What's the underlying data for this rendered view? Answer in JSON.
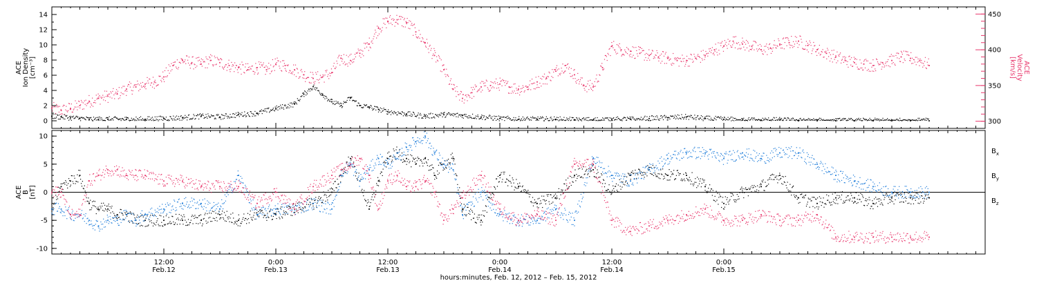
{
  "chart_data": [
    {
      "type": "scatter",
      "panel": "density-velocity",
      "ylabel_left": [
        "ACE",
        "Ion Density",
        "[cm⁻³]"
      ],
      "ylabel_right": [
        "ACE",
        "Velocity",
        "[km/s]"
      ],
      "ylim_left": [
        -1,
        15
      ],
      "ylim_right": [
        290,
        460
      ],
      "yticks_left": [
        0,
        2,
        4,
        6,
        8,
        10,
        12,
        14
      ],
      "yticks_right": [
        300,
        350,
        400,
        450
      ],
      "colors": {
        "density": "#000000",
        "velocity": "#e8346a"
      },
      "series": [
        {
          "key": "density",
          "axis": "left",
          "color": "#000000",
          "x": [
            0,
            1,
            2,
            3,
            4,
            5,
            6,
            8,
            10,
            12,
            14,
            16,
            18,
            20,
            22,
            24,
            26,
            27,
            28,
            29,
            30,
            31,
            32,
            33,
            34,
            35,
            36,
            38,
            40,
            42,
            44,
            46,
            48,
            50,
            52,
            54,
            56,
            58,
            60,
            62,
            64,
            66,
            68,
            70,
            72,
            74,
            76,
            78,
            80,
            82,
            84,
            86,
            88,
            90,
            92,
            94
          ],
          "y": [
            0.6,
            0.5,
            0.4,
            0.3,
            0.2,
            0.2,
            0.2,
            0.2,
            0.2,
            0.3,
            0.4,
            0.6,
            0.5,
            0.8,
            1.0,
            1.6,
            2.2,
            3.5,
            4.5,
            3.5,
            2.5,
            2.0,
            3.0,
            2.0,
            1.8,
            1.5,
            1.2,
            0.9,
            0.6,
            0.8,
            0.7,
            0.5,
            0.3,
            0.2,
            0.2,
            0.2,
            0.1,
            0.1,
            0.2,
            0.2,
            0.3,
            0.4,
            0.5,
            0.3,
            0.2,
            0.1,
            0.1,
            0.1,
            0.0,
            0.0,
            0.0,
            0.0,
            0.0,
            0.0,
            0.0,
            0.0
          ]
        },
        {
          "key": "velocity",
          "axis": "right",
          "color": "#e8346a",
          "x": [
            0,
            1,
            2,
            3,
            4,
            5,
            6,
            7,
            8,
            9,
            10,
            11,
            12,
            13,
            14,
            15,
            16,
            17,
            18,
            19,
            20,
            21,
            22,
            23,
            24,
            25,
            26,
            27,
            28,
            29,
            30,
            31,
            32,
            33,
            34,
            35,
            36,
            37,
            38,
            39,
            40,
            41,
            42,
            43,
            44,
            45,
            46,
            47,
            48,
            49,
            50,
            51,
            52,
            53,
            54,
            55,
            56,
            57,
            58,
            59,
            60,
            61,
            62,
            63,
            64,
            65,
            66,
            67,
            68,
            69,
            70,
            71,
            72,
            73,
            74,
            75,
            76,
            77,
            78,
            79,
            80,
            81,
            82,
            83,
            84,
            85,
            86,
            87,
            88,
            89,
            90,
            91,
            92,
            93,
            94
          ],
          "y": [
            318,
            315,
            318,
            322,
            328,
            332,
            335,
            338,
            345,
            348,
            352,
            355,
            362,
            378,
            385,
            382,
            380,
            385,
            382,
            378,
            375,
            372,
            375,
            372,
            380,
            378,
            372,
            365,
            360,
            362,
            368,
            388,
            385,
            395,
            408,
            430,
            440,
            442,
            438,
            425,
            410,
            392,
            372,
            345,
            332,
            340,
            348,
            350,
            352,
            348,
            345,
            348,
            355,
            360,
            370,
            378,
            365,
            350,
            348,
            375,
            405,
            400,
            398,
            395,
            392,
            390,
            388,
            385,
            385,
            388,
            392,
            400,
            405,
            412,
            408,
            405,
            400,
            402,
            408,
            410,
            412,
            406,
            400,
            395,
            390,
            385,
            382,
            380,
            378,
            382,
            385,
            390,
            388,
            385,
            378
          ]
        }
      ]
    },
    {
      "type": "scatter",
      "panel": "magnetic-field",
      "ylabel": [
        "ACE",
        "B",
        "[nT]"
      ],
      "ylim": [
        -11,
        11
      ],
      "yticks": [
        -10,
        -5,
        0,
        5,
        10
      ],
      "xlabel": "hours:minutes, Feb. 12, 2012 – Feb. 15, 2012",
      "x_hours_total": 100,
      "x_ticks": [
        {
          "hour": 12,
          "time": "12:00",
          "date": "Feb.12"
        },
        {
          "hour": 24,
          "time": "0:00",
          "date": "Feb.13"
        },
        {
          "hour": 36,
          "time": "12:00",
          "date": "Feb.13"
        },
        {
          "hour": 48,
          "time": "0:00",
          "date": "Feb.14"
        },
        {
          "hour": 60,
          "time": "12:00",
          "date": "Feb.14"
        },
        {
          "hour": 72,
          "time": "0:00",
          "date": "Feb.15"
        }
      ],
      "legend": [
        {
          "label": "B",
          "sub": "x",
          "color": "#000000"
        },
        {
          "label": "B",
          "sub": "y",
          "color": "#1a7ad9"
        },
        {
          "label": "B",
          "sub": "z",
          "color": "#e8346a"
        }
      ],
      "series": [
        {
          "key": "bx",
          "color": "#000000",
          "x": [
            0,
            1,
            2,
            3,
            4,
            5,
            6,
            7,
            8,
            9,
            10,
            12,
            14,
            16,
            18,
            20,
            22,
            24,
            26,
            28,
            30,
            31,
            32,
            33,
            34,
            35,
            36,
            37,
            38,
            39,
            40,
            41,
            42,
            43,
            44,
            46,
            48,
            50,
            52,
            54,
            56,
            58,
            60,
            62,
            64,
            66,
            68,
            70,
            72,
            74,
            76,
            78,
            80,
            82,
            84,
            86,
            88,
            90,
            92,
            94
          ],
          "y": [
            -3,
            1,
            2,
            3,
            -2,
            -3,
            -3,
            -4,
            -4,
            -5,
            -5,
            -5,
            -5,
            -5,
            -4,
            -5,
            -4,
            -4,
            -3,
            -2,
            0,
            3,
            6,
            2,
            -3,
            2,
            6,
            7,
            6,
            5,
            6,
            3,
            5,
            6,
            -3,
            -5,
            3,
            1,
            -2,
            -1,
            3,
            4,
            0,
            3,
            4,
            3,
            3,
            1,
            -2,
            0,
            1,
            3,
            -1,
            -2,
            -1,
            -1,
            -2,
            -1,
            -1,
            -1
          ]
        },
        {
          "key": "by",
          "color": "#1a7ad9",
          "x": [
            0,
            1,
            2,
            3,
            4,
            5,
            6,
            7,
            8,
            9,
            10,
            12,
            14,
            16,
            18,
            20,
            22,
            24,
            26,
            28,
            30,
            31,
            32,
            33,
            34,
            35,
            36,
            37,
            38,
            39,
            40,
            41,
            42,
            43,
            44,
            46,
            48,
            50,
            52,
            54,
            56,
            58,
            60,
            62,
            64,
            66,
            68,
            70,
            72,
            74,
            76,
            78,
            80,
            82,
            84,
            86,
            88,
            90,
            92,
            94
          ],
          "y": [
            -3,
            -3,
            -4,
            -4,
            -5,
            -6,
            -5,
            -5,
            -4,
            -5,
            -4,
            -3,
            -2,
            -2,
            -3,
            3,
            -4,
            -3,
            -3,
            -2,
            -3,
            3,
            5,
            2,
            4,
            6,
            5,
            6,
            8,
            9,
            10,
            7,
            5,
            4,
            -4,
            0,
            -4,
            -5,
            -5,
            -3,
            -5,
            6,
            3,
            2,
            4,
            6,
            7,
            7,
            6,
            7,
            6,
            7,
            7,
            5,
            3,
            2,
            1,
            0,
            0,
            0
          ]
        },
        {
          "key": "bz",
          "color": "#e8346a",
          "x": [
            0,
            1,
            2,
            3,
            4,
            5,
            6,
            7,
            8,
            9,
            10,
            12,
            14,
            16,
            18,
            20,
            22,
            24,
            26,
            28,
            30,
            31,
            32,
            33,
            34,
            35,
            36,
            37,
            38,
            39,
            40,
            41,
            42,
            43,
            44,
            46,
            48,
            50,
            52,
            54,
            56,
            58,
            60,
            62,
            64,
            66,
            68,
            70,
            72,
            74,
            76,
            78,
            80,
            82,
            84,
            86,
            88,
            90,
            92,
            94
          ],
          "y": [
            0,
            0,
            -4,
            -4,
            2,
            3,
            4,
            4,
            3,
            3,
            3,
            2,
            2,
            1,
            1,
            1,
            -2,
            0,
            -3,
            1,
            3,
            4,
            5,
            6,
            3,
            -3,
            2,
            3,
            1,
            1,
            2,
            0,
            -5,
            -3,
            -1,
            3,
            -3,
            -5,
            -4,
            -5,
            5,
            5,
            -5,
            -7,
            -6,
            -5,
            -4,
            -3,
            -5,
            -5,
            -4,
            -5,
            -5,
            -4,
            -8,
            -8,
            -8,
            -8,
            -8,
            -8
          ]
        }
      ]
    }
  ]
}
